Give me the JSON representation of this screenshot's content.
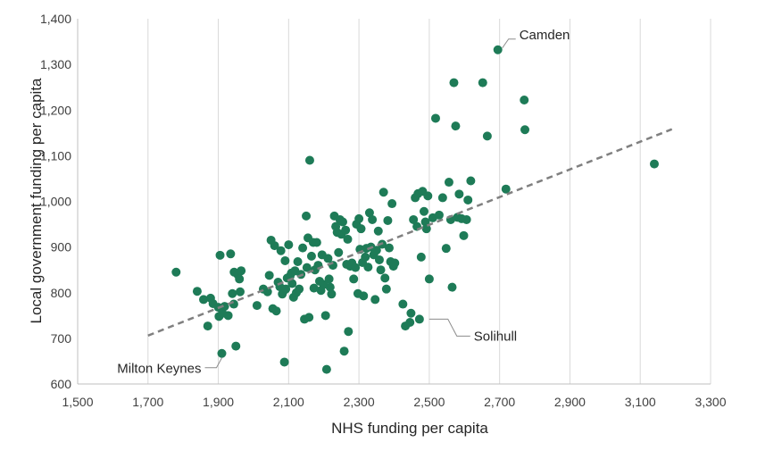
{
  "chart_data": {
    "type": "scatter",
    "xlabel": "NHS funding per capita",
    "ylabel": "Local government funding per capita",
    "xlim": [
      1500,
      3300
    ],
    "ylim": [
      600,
      1400
    ],
    "x_ticks": [
      1500,
      1700,
      1900,
      2100,
      2300,
      2500,
      2700,
      2900,
      3100,
      3300
    ],
    "y_ticks": [
      600,
      700,
      800,
      900,
      1000,
      1100,
      1200,
      1300,
      1400
    ],
    "x_tick_labels": [
      "1,500",
      "1,700",
      "1,900",
      "2,100",
      "2,300",
      "2,500",
      "2,700",
      "2,900",
      "3,100",
      "3,300"
    ],
    "y_tick_labels": [
      "600",
      "700",
      "800",
      "900",
      "1,000",
      "1,100",
      "1,200",
      "1,300",
      "1,400"
    ],
    "grid": "vertical",
    "point_color": "#1e7b57",
    "trend_color": "#808080",
    "trendline": {
      "x": [
        1700,
        3190
      ],
      "y": [
        706,
        1158
      ]
    },
    "annotations": [
      {
        "label": "Camden",
        "x": 2695,
        "y": 1332
      },
      {
        "label": "Solihull",
        "x": 2487,
        "y": 742
      },
      {
        "label": "Milton Keynes",
        "x": 1910,
        "y": 667
      }
    ],
    "points": [
      [
        1780,
        845
      ],
      [
        1840,
        803
      ],
      [
        1858,
        785
      ],
      [
        1870,
        727
      ],
      [
        1878,
        788
      ],
      [
        1885,
        776
      ],
      [
        1900,
        768
      ],
      [
        1902,
        748
      ],
      [
        1905,
        882
      ],
      [
        1910,
        667
      ],
      [
        1912,
        755
      ],
      [
        1918,
        770
      ],
      [
        1928,
        750
      ],
      [
        1935,
        885
      ],
      [
        1940,
        798
      ],
      [
        1944,
        775
      ],
      [
        1945,
        845
      ],
      [
        1950,
        683
      ],
      [
        1955,
        840
      ],
      [
        1960,
        830
      ],
      [
        1962,
        802
      ],
      [
        1965,
        848
      ],
      [
        2010,
        772
      ],
      [
        2028,
        808
      ],
      [
        2040,
        802
      ],
      [
        2045,
        838
      ],
      [
        2050,
        915
      ],
      [
        2055,
        765
      ],
      [
        2060,
        903
      ],
      [
        2065,
        760
      ],
      [
        2070,
        823
      ],
      [
        2075,
        813
      ],
      [
        2078,
        892
      ],
      [
        2082,
        797
      ],
      [
        2085,
        803
      ],
      [
        2088,
        648
      ],
      [
        2090,
        870
      ],
      [
        2092,
        808
      ],
      [
        2096,
        832
      ],
      [
        2100,
        905
      ],
      [
        2104,
        836
      ],
      [
        2108,
        843
      ],
      [
        2110,
        820
      ],
      [
        2114,
        790
      ],
      [
        2118,
        848
      ],
      [
        2122,
        800
      ],
      [
        2126,
        868
      ],
      [
        2130,
        808
      ],
      [
        2135,
        840
      ],
      [
        2140,
        898
      ],
      [
        2145,
        742
      ],
      [
        2150,
        968
      ],
      [
        2152,
        855
      ],
      [
        2155,
        920
      ],
      [
        2158,
        746
      ],
      [
        2160,
        1090
      ],
      [
        2165,
        880
      ],
      [
        2170,
        910
      ],
      [
        2172,
        810
      ],
      [
        2175,
        850
      ],
      [
        2180,
        910
      ],
      [
        2184,
        860
      ],
      [
        2188,
        825
      ],
      [
        2192,
        805
      ],
      [
        2195,
        883
      ],
      [
        2200,
        818
      ],
      [
        2205,
        750
      ],
      [
        2208,
        632
      ],
      [
        2212,
        875
      ],
      [
        2215,
        830
      ],
      [
        2218,
        812
      ],
      [
        2222,
        797
      ],
      [
        2226,
        860
      ],
      [
        2230,
        968
      ],
      [
        2234,
        945
      ],
      [
        2238,
        932
      ],
      [
        2242,
        888
      ],
      [
        2246,
        960
      ],
      [
        2250,
        928
      ],
      [
        2254,
        955
      ],
      [
        2258,
        672
      ],
      [
        2262,
        937
      ],
      [
        2265,
        862
      ],
      [
        2268,
        917
      ],
      [
        2270,
        715
      ],
      [
        2275,
        858
      ],
      [
        2280,
        865
      ],
      [
        2285,
        830
      ],
      [
        2290,
        855
      ],
      [
        2293,
        950
      ],
      [
        2297,
        798
      ],
      [
        2300,
        962
      ],
      [
        2303,
        895
      ],
      [
        2306,
        940
      ],
      [
        2310,
        866
      ],
      [
        2313,
        793
      ],
      [
        2318,
        878
      ],
      [
        2321,
        897
      ],
      [
        2326,
        856
      ],
      [
        2330,
        975
      ],
      [
        2334,
        900
      ],
      [
        2338,
        960
      ],
      [
        2342,
        883
      ],
      [
        2346,
        785
      ],
      [
        2350,
        893
      ],
      [
        2355,
        935
      ],
      [
        2358,
        872
      ],
      [
        2362,
        850
      ],
      [
        2366,
        906
      ],
      [
        2370,
        1020
      ],
      [
        2374,
        832
      ],
      [
        2378,
        808
      ],
      [
        2382,
        958
      ],
      [
        2386,
        898
      ],
      [
        2390,
        868
      ],
      [
        2394,
        995
      ],
      [
        2398,
        858
      ],
      [
        2402,
        865
      ],
      [
        2425,
        775
      ],
      [
        2432,
        727
      ],
      [
        2445,
        735
      ],
      [
        2448,
        755
      ],
      [
        2455,
        960
      ],
      [
        2460,
        1008
      ],
      [
        2465,
        945
      ],
      [
        2468,
        1017
      ],
      [
        2472,
        742
      ],
      [
        2477,
        878
      ],
      [
        2481,
        1022
      ],
      [
        2485,
        978
      ],
      [
        2489,
        955
      ],
      [
        2492,
        940
      ],
      [
        2496,
        1012
      ],
      [
        2500,
        830
      ],
      [
        2510,
        964
      ],
      [
        2518,
        1182
      ],
      [
        2528,
        970
      ],
      [
        2538,
        1008
      ],
      [
        2548,
        897
      ],
      [
        2556,
        1042
      ],
      [
        2561,
        960
      ],
      [
        2565,
        812
      ],
      [
        2570,
        1260
      ],
      [
        2575,
        1165
      ],
      [
        2580,
        965
      ],
      [
        2585,
        1016
      ],
      [
        2592,
        962
      ],
      [
        2598,
        925
      ],
      [
        2606,
        960
      ],
      [
        2610,
        1003
      ],
      [
        2618,
        1045
      ],
      [
        2652,
        1260
      ],
      [
        2665,
        1143
      ],
      [
        2695,
        1332
      ],
      [
        2718,
        1027
      ],
      [
        2770,
        1222
      ],
      [
        2772,
        1157
      ],
      [
        3140,
        1082
      ]
    ]
  }
}
